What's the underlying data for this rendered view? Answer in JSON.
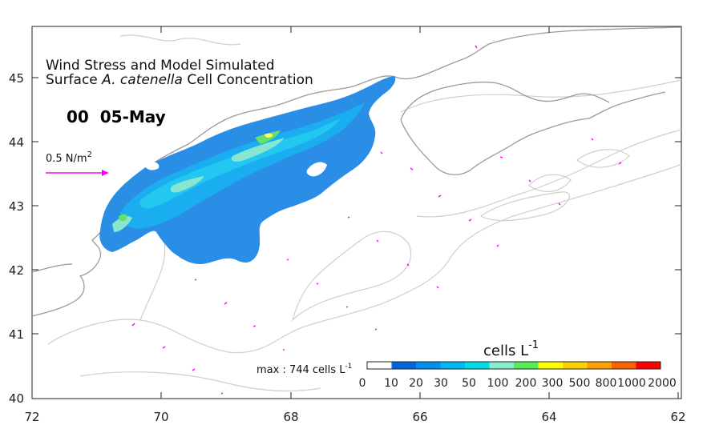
{
  "chart_data": {
    "type": "heatmap",
    "title_line1": "Wind Stress and Model Simulated",
    "title_line2_pre": "Surface ",
    "title_line2_species": "A. catenella",
    "title_line2_post": " Cell Concentration",
    "timestamp": "00  05-May",
    "wind_scale": {
      "label": "0.5 N/m",
      "exponent": "2",
      "value": 0.5,
      "color": "#ff00ff"
    },
    "x_ticks": [
      "72",
      "70",
      "68",
      "66",
      "64",
      "62"
    ],
    "y_ticks": [
      "45",
      "44",
      "43",
      "42",
      "41",
      "40"
    ],
    "xlim": [
      -72,
      -62
    ],
    "ylim": [
      40,
      45.8
    ],
    "max_label": "max : 744 cells L",
    "max_label_exp": "-1",
    "max_value": 744,
    "colorbar": {
      "units": "cells L",
      "units_exp": "-1",
      "tick_labels": [
        "0",
        "10",
        "20",
        "30",
        "50",
        "100",
        "200",
        "300",
        "500",
        "800",
        "1000",
        "2000"
      ],
      "levels": [
        0,
        10,
        20,
        30,
        50,
        100,
        200,
        300,
        500,
        800,
        1000,
        2000
      ],
      "colors": [
        "#ffffff",
        "#0066dd",
        "#0090f0",
        "#00b8f5",
        "#00dde8",
        "#88eecc",
        "#55ee55",
        "#ffff00",
        "#ffd000",
        "#ffa000",
        "#ff6000",
        "#ff0000"
      ]
    }
  }
}
